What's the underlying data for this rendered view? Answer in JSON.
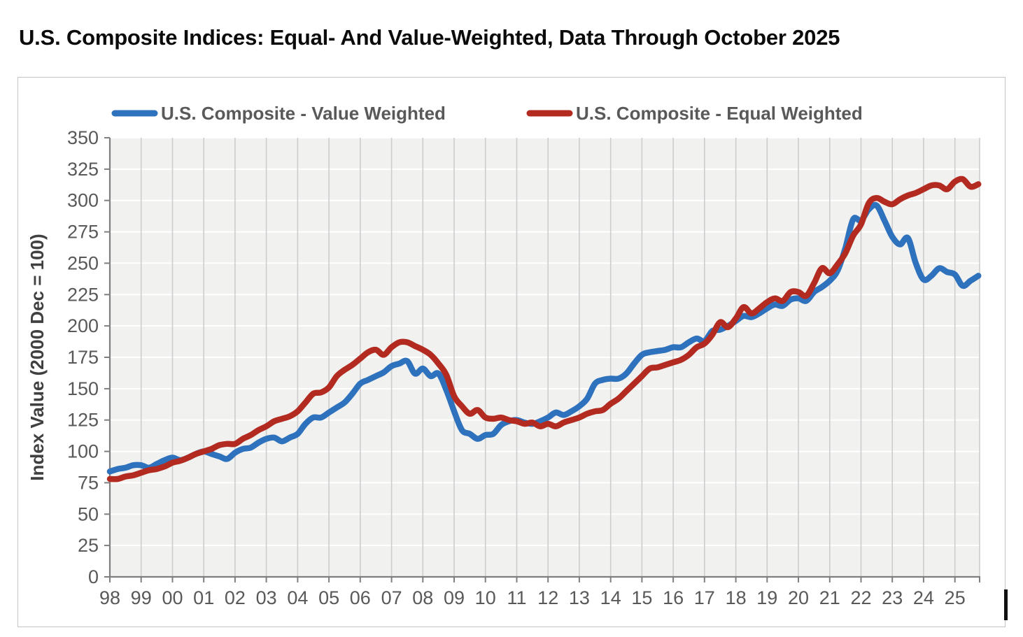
{
  "chart_data": {
    "type": "line",
    "title": "U.S. Composite Indices: Equal- And Value-Weighted, Data Through October 2025",
    "xlabel": "",
    "ylabel": "Index Value (2000 Dec = 100)",
    "ylim": [
      0,
      350
    ],
    "ytick_step": 25,
    "ytick_values": [
      0,
      25,
      50,
      75,
      100,
      125,
      150,
      175,
      200,
      225,
      250,
      275,
      300,
      325,
      350
    ],
    "x_domain": [
      1998,
      2025.79
    ],
    "xtick_years": [
      1998,
      1999,
      2000,
      2001,
      2002,
      2003,
      2004,
      2005,
      2006,
      2007,
      2008,
      2009,
      2010,
      2011,
      2012,
      2013,
      2014,
      2015,
      2016,
      2017,
      2018,
      2019,
      2020,
      2021,
      2022,
      2023,
      2024,
      2025
    ],
    "xtick_labels": [
      "98",
      "99",
      "00",
      "01",
      "02",
      "03",
      "04",
      "05",
      "06",
      "07",
      "08",
      "09",
      "10",
      "11",
      "12",
      "13",
      "14",
      "15",
      "16",
      "17",
      "18",
      "19",
      "20",
      "21",
      "22",
      "23",
      "24",
      "25"
    ],
    "x_start": 1998.0,
    "x_step": 0.25,
    "grid": {
      "plot_bg": "#f1f1f0",
      "h_grid_color": "#ffffff",
      "v_grid_color": "#cdcdcd",
      "axis_color": "#7f7f7f",
      "label_color": "#595959",
      "axis_title_color": "#404040"
    },
    "legend_position": "top",
    "series": [
      {
        "name": "U.S. Composite - Value Weighted",
        "color": "#2E71BC",
        "values": [
          84,
          86,
          87,
          89,
          89,
          87,
          90,
          93,
          95,
          93,
          95,
          98,
          100,
          98,
          96,
          94,
          99,
          102,
          103,
          107,
          110,
          111,
          108,
          111,
          114,
          122,
          127,
          127,
          131,
          135,
          139,
          146,
          154,
          157,
          160,
          163,
          168,
          170,
          172,
          162,
          166,
          160,
          162,
          149,
          132,
          117,
          114,
          110,
          113,
          114,
          121,
          124,
          125,
          123,
          122,
          124,
          127,
          131,
          129,
          132,
          136,
          142,
          154,
          157,
          158,
          158,
          162,
          170,
          177,
          179,
          180,
          181,
          183,
          183,
          187,
          190,
          188,
          196,
          197,
          200,
          204,
          208,
          207,
          210,
          214,
          217,
          216,
          221,
          222,
          220,
          227,
          231,
          236,
          244,
          262,
          285,
          284,
          293,
          296,
          284,
          271,
          265,
          270,
          250,
          237,
          240,
          246,
          243,
          241,
          232,
          236,
          240
        ]
      },
      {
        "name": "U.S. Composite - Equal Weighted",
        "color": "#B32B20",
        "values": [
          78,
          78,
          80,
          81,
          83,
          85,
          86,
          88,
          91,
          92.5,
          95,
          98,
          100,
          102,
          105,
          106,
          106,
          110,
          113,
          117,
          120,
          124,
          126,
          128,
          132,
          139,
          146,
          147,
          151,
          160,
          165,
          169,
          174,
          179,
          181,
          177,
          183,
          187,
          187,
          184,
          181,
          177,
          170,
          161,
          144,
          136,
          130,
          133,
          127,
          126,
          127,
          125,
          124,
          122,
          123,
          120,
          122,
          120,
          123,
          125,
          127,
          130,
          132,
          133,
          138,
          142,
          148,
          154,
          160,
          166,
          167,
          169,
          171,
          173,
          177,
          183,
          186,
          193,
          203,
          199,
          206,
          215,
          210,
          214,
          219,
          222,
          220,
          227,
          227,
          224,
          234,
          246,
          242,
          249,
          258,
          272,
          281,
          298,
          302,
          299,
          297,
          301,
          304,
          306,
          309,
          312,
          312,
          309,
          315,
          317,
          311,
          313
        ]
      }
    ]
  }
}
